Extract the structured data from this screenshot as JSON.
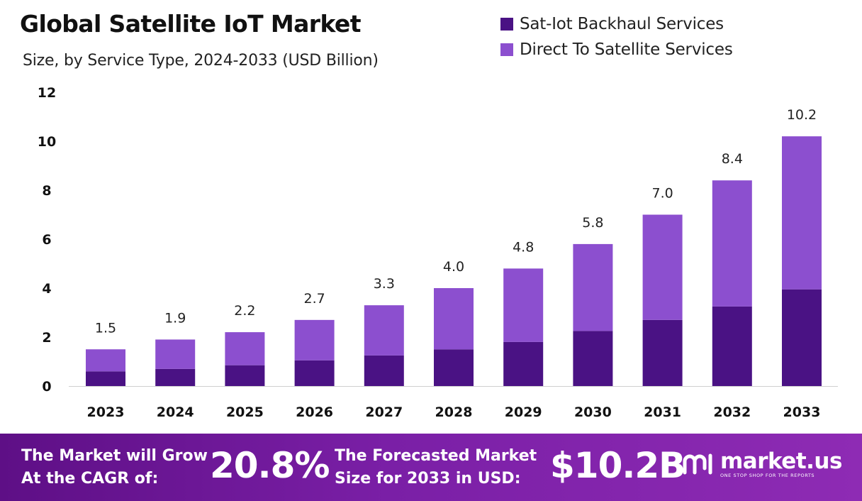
{
  "title": "Global Satellite IoT Market",
  "subtitle": "Size, by Service Type, 2024-2033 (USD Billion)",
  "colors": {
    "backhaul": "#4a1284",
    "direct": "#8c4fcf",
    "footer": "#6e1a9c"
  },
  "footer": {
    "cagr_label_line1": "The Market will Grow",
    "cagr_label_line2": "At the CAGR of:",
    "cagr_value": "20.8%",
    "forecast_label_line1": "The Forecasted Market",
    "forecast_label_line2": "Size for 2033 in USD:",
    "forecast_value": "$10.2B",
    "logo_text": "market.us",
    "logo_tagline": "ONE STOP SHOP FOR THE REPORTS",
    "logo_icon": "market-us-logo-icon"
  },
  "chart_data": {
    "type": "bar",
    "stacked": true,
    "title": "Global Satellite IoT Market",
    "subtitle": "Size, by Service Type, 2024-2033 (USD Billion)",
    "categories": [
      "2023",
      "2024",
      "2025",
      "2026",
      "2027",
      "2028",
      "2029",
      "2030",
      "2031",
      "2032",
      "2033"
    ],
    "series": [
      {
        "name": "Sat-Iot Backhaul Services",
        "values": [
          0.6,
          0.7,
          0.85,
          1.05,
          1.25,
          1.5,
          1.8,
          2.25,
          2.7,
          3.25,
          3.95
        ]
      },
      {
        "name": "Direct To Satellite Services",
        "values": [
          0.9,
          1.2,
          1.35,
          1.65,
          2.05,
          2.5,
          3.0,
          3.55,
          4.3,
          5.15,
          6.25
        ]
      }
    ],
    "totals": [
      "1.5",
      "1.9",
      "2.2",
      "2.7",
      "3.3",
      "4.0",
      "4.8",
      "5.8",
      "7.0",
      "8.4",
      "10.2"
    ],
    "yticks": [
      0,
      2,
      4,
      6,
      8,
      10,
      12
    ],
    "ylim": [
      0,
      12
    ],
    "xlabel": "",
    "ylabel": "",
    "grid": false,
    "legend_position": "top-right"
  }
}
